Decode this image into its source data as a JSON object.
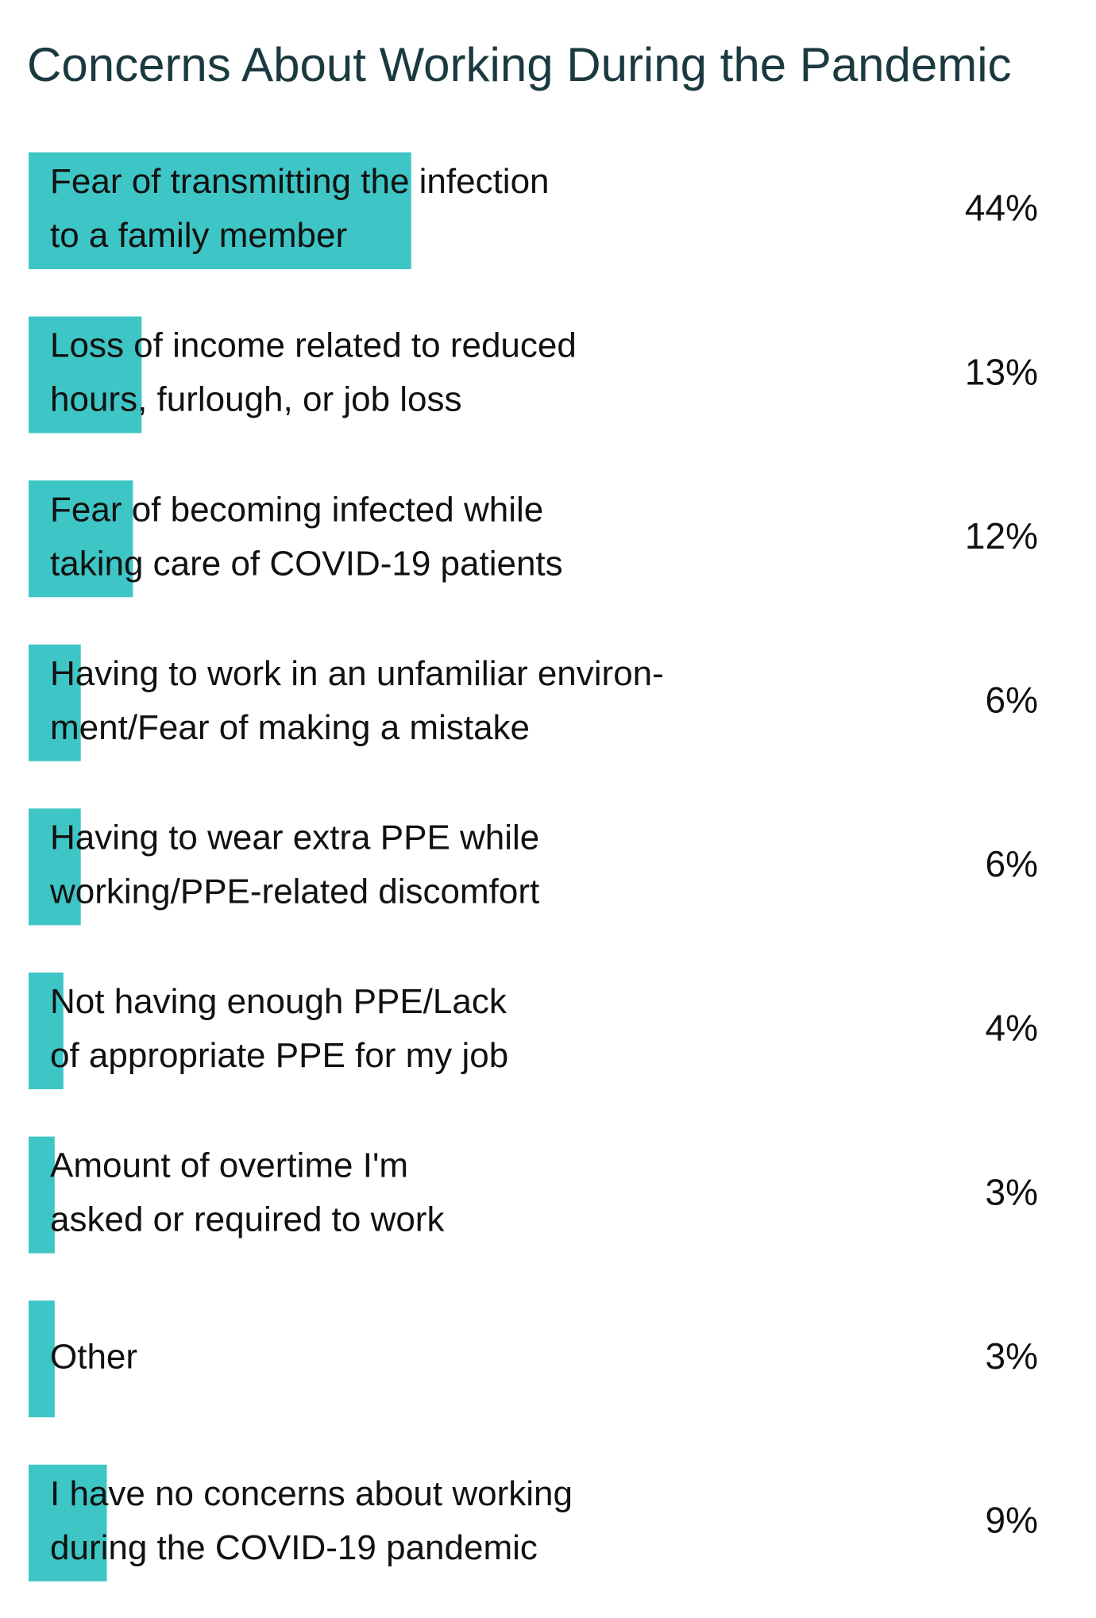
{
  "chart_data": {
    "type": "bar",
    "orientation": "horizontal",
    "title": "Concerns About Working During the Pandemic",
    "categories": [
      [
        "Fear of transmitting the infection",
        "to a family member"
      ],
      [
        "Loss of income related to reduced",
        "hours, furlough, or job loss"
      ],
      [
        "Fear of becoming infected while",
        "taking care of COVID-19 patients"
      ],
      [
        "Having to work in an unfamiliar environ-",
        "ment/Fear of making a mistake"
      ],
      [
        "Having to wear extra PPE while",
        "working/PPE-related discomfort"
      ],
      [
        "Not having enough PPE/Lack",
        "of appropriate PPE for my job"
      ],
      [
        "Amount of overtime I'm",
        "asked or required to work"
      ],
      [
        "Other"
      ],
      [
        "I have no concerns about working",
        "during the COVID-19 pandemic"
      ]
    ],
    "values": [
      44,
      13,
      12,
      6,
      6,
      4,
      3,
      3,
      9
    ],
    "value_labels": [
      "44%",
      "13%",
      "12%",
      "6%",
      "6%",
      "4%",
      "3%",
      "3%",
      "9%"
    ],
    "color": "#3ec6c6"
  }
}
